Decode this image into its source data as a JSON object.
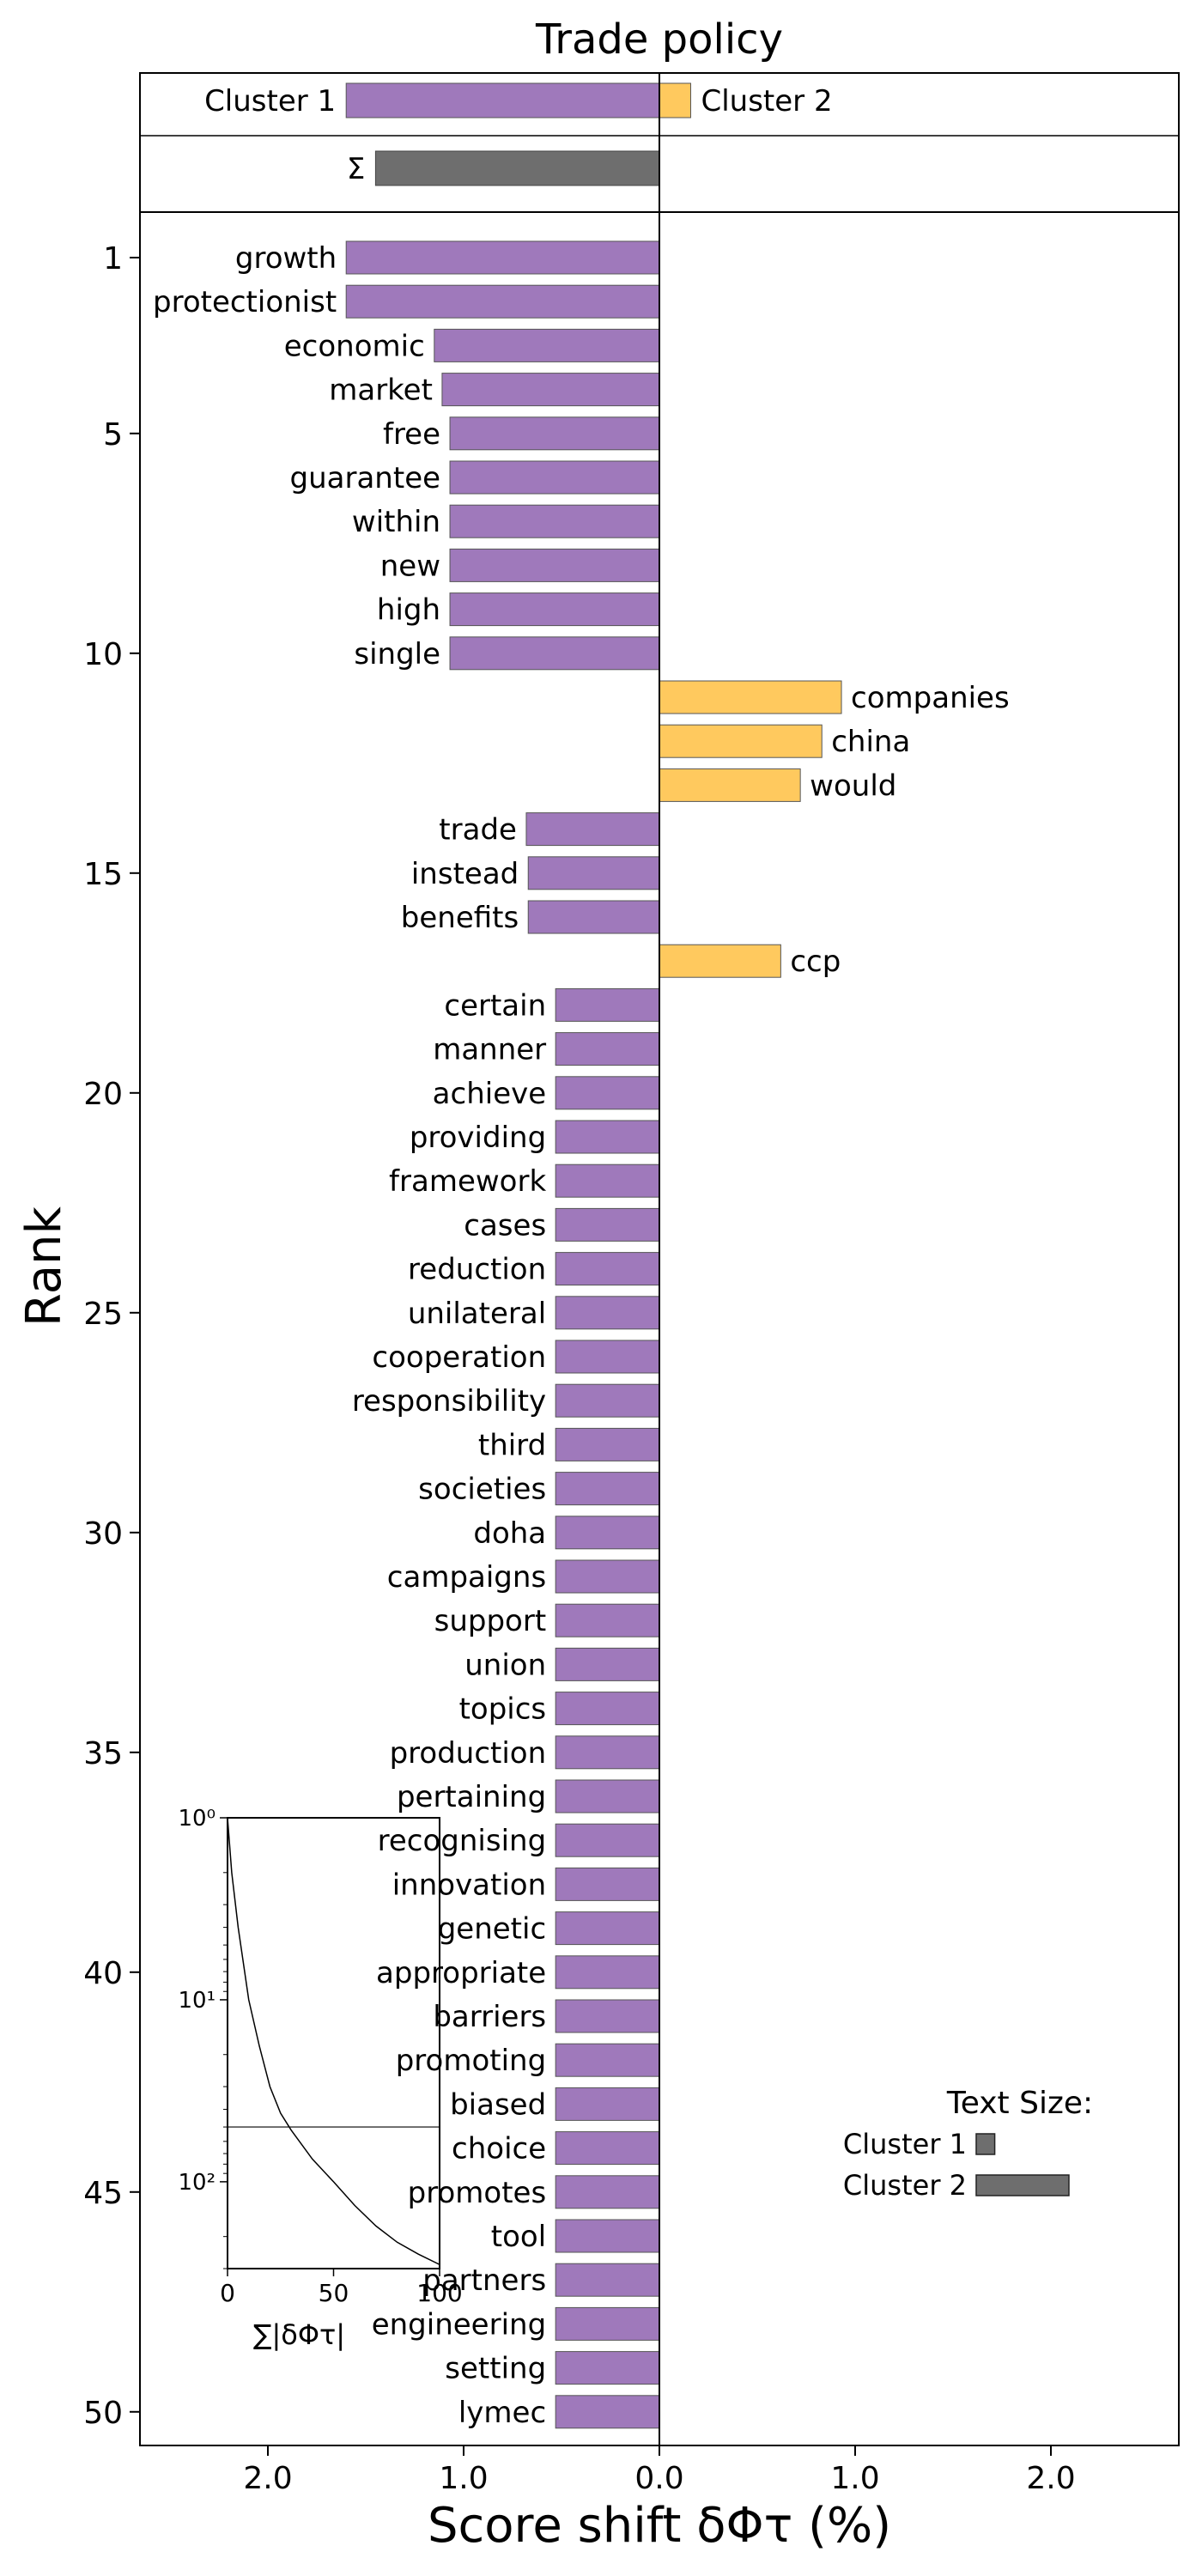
{
  "chart_data": {
    "type": "bar",
    "title": "Trade policy",
    "xlabel": "Score shift δΦτ (%)",
    "ylabel": "Rank",
    "xlim": [
      -2.6,
      2.6
    ],
    "x_tick_labels": [
      "2.0",
      "1.0",
      "0.0",
      "1.0",
      "2.0"
    ],
    "x_tick_values": [
      -2,
      -1,
      0,
      1,
      2
    ],
    "y_ticks": [
      1,
      5,
      10,
      15,
      20,
      25,
      30,
      35,
      40,
      45,
      50
    ],
    "colors": {
      "cluster1": "#9f79bb",
      "cluster2": "#ffc95e",
      "sum": "#6e6e6e"
    },
    "summary": {
      "cluster1_label": "Cluster 1",
      "cluster2_label": "Cluster 2",
      "cluster1_total": -1.6,
      "cluster2_total": 0.16,
      "sum_label": "Σ",
      "sum_total": -1.45
    },
    "words": [
      {
        "rank": 1,
        "word": "growth",
        "value": -1.6
      },
      {
        "rank": 2,
        "word": "protectionist",
        "value": -1.6
      },
      {
        "rank": 3,
        "word": "economic",
        "value": -1.15
      },
      {
        "rank": 4,
        "word": "market",
        "value": -1.11
      },
      {
        "rank": 5,
        "word": "free",
        "value": -1.07
      },
      {
        "rank": 6,
        "word": "guarantee",
        "value": -1.07
      },
      {
        "rank": 7,
        "word": "within",
        "value": -1.07
      },
      {
        "rank": 8,
        "word": "new",
        "value": -1.07
      },
      {
        "rank": 9,
        "word": "high",
        "value": -1.07
      },
      {
        "rank": 10,
        "word": "single",
        "value": -1.07
      },
      {
        "rank": 11,
        "word": "companies",
        "value": 0.93
      },
      {
        "rank": 12,
        "word": "china",
        "value": 0.83
      },
      {
        "rank": 13,
        "word": "would",
        "value": 0.72
      },
      {
        "rank": 14,
        "word": "trade",
        "value": -0.68
      },
      {
        "rank": 15,
        "word": "instead",
        "value": -0.67
      },
      {
        "rank": 16,
        "word": "benefits",
        "value": -0.67
      },
      {
        "rank": 17,
        "word": "ccp",
        "value": 0.62
      },
      {
        "rank": 18,
        "word": "certain",
        "value": -0.53
      },
      {
        "rank": 19,
        "word": "manner",
        "value": -0.53
      },
      {
        "rank": 20,
        "word": "achieve",
        "value": -0.53
      },
      {
        "rank": 21,
        "word": "providing",
        "value": -0.53
      },
      {
        "rank": 22,
        "word": "framework",
        "value": -0.53
      },
      {
        "rank": 23,
        "word": "cases",
        "value": -0.53
      },
      {
        "rank": 24,
        "word": "reduction",
        "value": -0.53
      },
      {
        "rank": 25,
        "word": "unilateral",
        "value": -0.53
      },
      {
        "rank": 26,
        "word": "cooperation",
        "value": -0.53
      },
      {
        "rank": 27,
        "word": "responsibility",
        "value": -0.53
      },
      {
        "rank": 28,
        "word": "third",
        "value": -0.53
      },
      {
        "rank": 29,
        "word": "societies",
        "value": -0.53
      },
      {
        "rank": 30,
        "word": "doha",
        "value": -0.53
      },
      {
        "rank": 31,
        "word": "campaigns",
        "value": -0.53
      },
      {
        "rank": 32,
        "word": "support",
        "value": -0.53
      },
      {
        "rank": 33,
        "word": "union",
        "value": -0.53
      },
      {
        "rank": 34,
        "word": "topics",
        "value": -0.53
      },
      {
        "rank": 35,
        "word": "production",
        "value": -0.53
      },
      {
        "rank": 36,
        "word": "pertaining",
        "value": -0.53
      },
      {
        "rank": 37,
        "word": "recognising",
        "value": -0.53
      },
      {
        "rank": 38,
        "word": "innovation",
        "value": -0.53
      },
      {
        "rank": 39,
        "word": "genetic",
        "value": -0.53
      },
      {
        "rank": 40,
        "word": "appropriate",
        "value": -0.53
      },
      {
        "rank": 41,
        "word": "barriers",
        "value": -0.53
      },
      {
        "rank": 42,
        "word": "promoting",
        "value": -0.53
      },
      {
        "rank": 43,
        "word": "biased",
        "value": -0.53
      },
      {
        "rank": 44,
        "word": "choice",
        "value": -0.53
      },
      {
        "rank": 45,
        "word": "promotes",
        "value": -0.53
      },
      {
        "rank": 46,
        "word": "tool",
        "value": -0.53
      },
      {
        "rank": 47,
        "word": "partners",
        "value": -0.53
      },
      {
        "rank": 48,
        "word": "engineering",
        "value": -0.53
      },
      {
        "rank": 49,
        "word": "setting",
        "value": -0.53
      },
      {
        "rank": 50,
        "word": "lymec",
        "value": -0.53
      }
    ],
    "text_size_legend": {
      "title": "Text Size:",
      "cluster1_label": "Cluster 1",
      "cluster2_label": "Cluster 2",
      "cluster1_relative": 0.2,
      "cluster2_relative": 1.0
    },
    "inset": {
      "type": "line",
      "xlabel": "∑|δΦτ|",
      "x_ticks": [
        0,
        50,
        100
      ],
      "xlim": [
        0,
        100
      ],
      "y_scale": "log",
      "ylim": [
        1,
        300
      ],
      "y_tick_labels": [
        "10⁰",
        "10¹",
        "10²"
      ],
      "y_tick_values": [
        1,
        10,
        100
      ],
      "reference_rank": 50,
      "curve": [
        {
          "x": 0,
          "y": 1
        },
        {
          "x": 2,
          "y": 2
        },
        {
          "x": 5,
          "y": 4
        },
        {
          "x": 10,
          "y": 10
        },
        {
          "x": 15,
          "y": 18
        },
        {
          "x": 20,
          "y": 30
        },
        {
          "x": 25,
          "y": 42
        },
        {
          "x": 30,
          "y": 52
        },
        {
          "x": 40,
          "y": 75
        },
        {
          "x": 50,
          "y": 100
        },
        {
          "x": 60,
          "y": 135
        },
        {
          "x": 70,
          "y": 175
        },
        {
          "x": 80,
          "y": 215
        },
        {
          "x": 90,
          "y": 250
        },
        {
          "x": 100,
          "y": 285
        }
      ]
    }
  }
}
